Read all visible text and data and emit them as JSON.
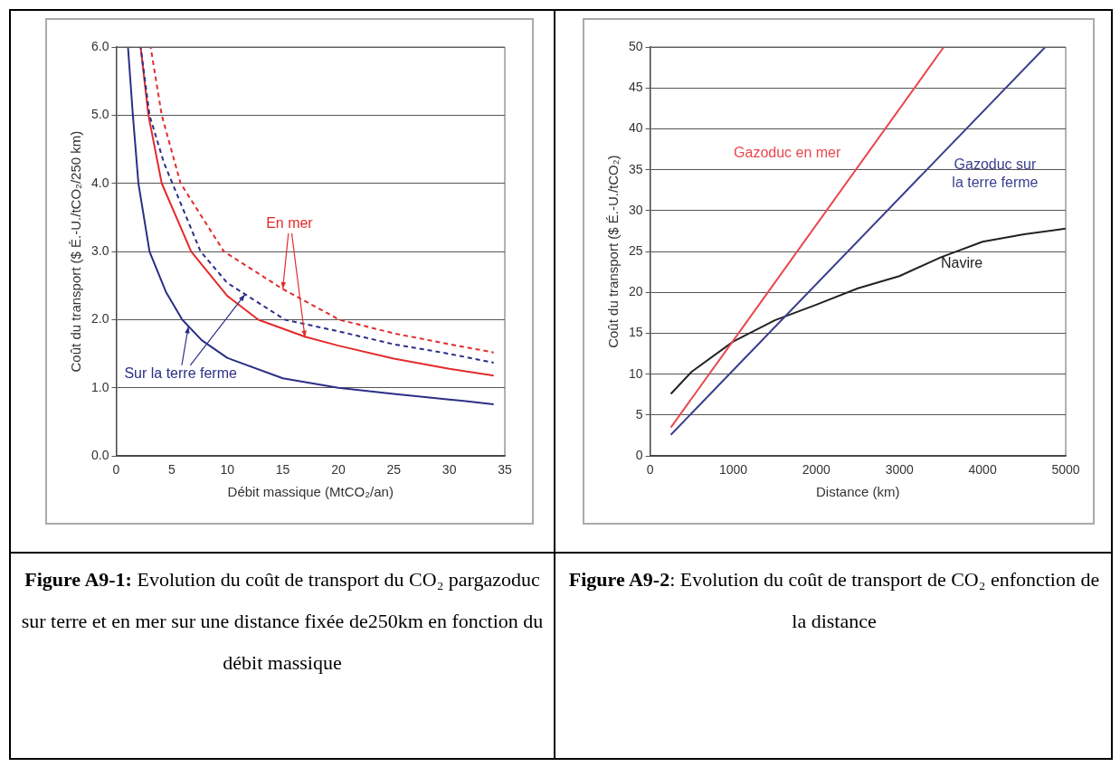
{
  "chart_data": [
    {
      "type": "line",
      "xlabel": "Débit massique (MtCO₂/an)",
      "ylabel": "Coût du transport ($ É.-U./tCO₂/250 km)",
      "xlim": [
        0,
        35
      ],
      "xticks": [
        0,
        5,
        10,
        15,
        20,
        25,
        30,
        35
      ],
      "ylim": [
        0,
        6
      ],
      "yticks": [
        {
          "value": 0,
          "label": "0.0"
        },
        {
          "value": 1,
          "label": "1.0"
        },
        {
          "value": 2,
          "label": "2.0"
        },
        {
          "value": 3,
          "label": "3.0"
        },
        {
          "value": 4,
          "label": "4.0"
        },
        {
          "value": 5,
          "label": "5.0"
        },
        {
          "value": 6,
          "label": "6.0"
        }
      ],
      "grid": "y",
      "legend": false,
      "line_style": "solid",
      "series": [
        {
          "color": "#2b2f86",
          "x": [
            1.06,
            1.5,
            2,
            3,
            4.5,
            5.95,
            7.7,
            10,
            15,
            20,
            25,
            30,
            34
          ],
          "values": [
            6,
            5,
            4,
            3,
            2.4,
            2,
            1.7,
            1.44,
            1.14,
            1,
            0.91,
            0.83,
            0.76
          ]
        },
        {
          "color": "#2b2f86",
          "line_style": "dashed",
          "x": [
            2.2,
            3,
            4.3,
            7.6,
            10,
            15.2,
            20,
            25,
            30,
            34
          ],
          "values": [
            6,
            5,
            4.3,
            3,
            2.54,
            2,
            1.83,
            1.64,
            1.5,
            1.37
          ]
        },
        {
          "color": "#e32b2b",
          "x": [
            2.2,
            2.9,
            4.1,
            6.75,
            10,
            12.8,
            17,
            20,
            25,
            30,
            34
          ],
          "values": [
            6,
            5,
            4,
            3,
            2.35,
            2,
            1.75,
            1.62,
            1.43,
            1.28,
            1.18
          ]
        },
        {
          "color": "#e32b2b",
          "line_style": "dashed",
          "x": [
            3.1,
            4.1,
            5.8,
            9.7,
            15,
            20.1,
            25,
            30,
            34
          ],
          "values": [
            6,
            5,
            4,
            3,
            2.45,
            2,
            1.8,
            1.64,
            1.52
          ]
        }
      ],
      "annotations": [
        {
          "text": "En mer",
          "x": 15,
          "y": 2.45
        },
        {
          "text": "Sur la terre ferme",
          "x": 6.5,
          "y": 1.9
        },
        "Figure A9-1:",
        " Evolution du coût de transport du CO₂ pargazoduc sur terre et en mer sur une distance fixée de250km en fonction du débit massique"
      ]
    },
    {
      "type": "line",
      "xlabel": "Distance (km)",
      "ylabel": "Coût du transport ($ É.-U./tCO₂)",
      "xlim": [
        0,
        5000
      ],
      "xticks": [
        0,
        1000,
        2000,
        3000,
        4000,
        5000
      ],
      "ylim": [
        0,
        50
      ],
      "yticks": [
        0,
        5,
        10,
        15,
        20,
        25,
        30,
        35,
        40,
        45,
        50
      ],
      "grid": "y",
      "legend": false,
      "line_style": "solid",
      "series": [
        {
          "name": "Gazoduc en mer",
          "color": "#e8484f",
          "x": [
            250,
            1000,
            3533
          ],
          "values": [
            3.5,
            14.1,
            50
          ]
        },
        {
          "name": "Gazoduc sur la terre ferme",
          "color": "#3a3f8f",
          "x": [
            250,
            1000,
            4754
          ],
          "values": [
            2.6,
            10.5,
            50
          ]
        },
        {
          "name": "Navire",
          "color": "#222222",
          "x": [
            250,
            500,
            1000,
            1500,
            2000,
            2500,
            3000,
            3500,
            4000,
            4500,
            5000
          ],
          "values": [
            7.6,
            10.3,
            14,
            16.6,
            18.5,
            20.5,
            22,
            24.3,
            26.2,
            27.1,
            27.8
          ]
        }
      ],
      "annotations": [
        "Figure A9-2",
        ": Evolution du coût de transport de CO₂ enfonction de la distance"
      ]
    }
  ]
}
